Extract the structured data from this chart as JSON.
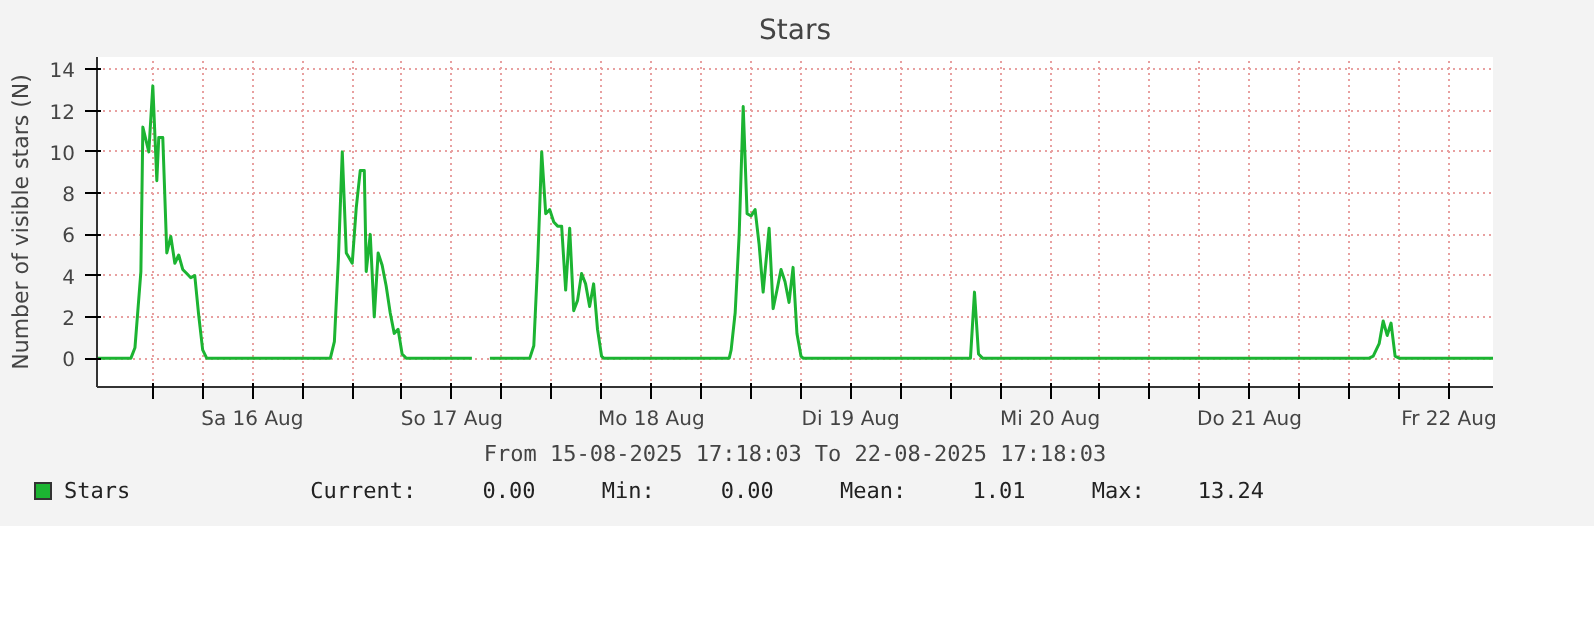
{
  "chart_data": {
    "type": "line",
    "title": "Stars",
    "ylabel": "Number of visible stars (N)",
    "annotations": [
      "From 15-08-2025 17:18:03 To 22-08-2025 17:18:03",
      "Current:     0.00     Min:     0.00     Mean:     1.01     Max:    13.24"
    ],
    "x": [
      "2025-08-15T17:18",
      "2025-08-15T21:23",
      "2025-08-15T21:52",
      "2025-08-15T22:35",
      "2025-08-15T22:49",
      "2025-08-15T23:32",
      "2025-08-16T00:01",
      "2025-08-16T00:30",
      "2025-08-16T00:44",
      "2025-08-16T01:13",
      "2025-08-16T01:42",
      "2025-08-16T02:11",
      "2025-08-16T02:40",
      "2025-08-16T03:08",
      "2025-08-16T03:37",
      "2025-08-16T04:06",
      "2025-08-16T04:35",
      "2025-08-16T05:04",
      "2025-08-16T05:32",
      "2025-08-16T06:01",
      "2025-08-16T06:30",
      "2025-08-16T21:23",
      "2025-08-16T21:52",
      "2025-08-16T22:21",
      "2025-08-16T22:49",
      "2025-08-16T23:18",
      "2025-08-17T00:01",
      "2025-08-17T00:30",
      "2025-08-17T00:59",
      "2025-08-17T01:28",
      "2025-08-17T01:42",
      "2025-08-17T02:11",
      "2025-08-17T02:40",
      "2025-08-17T03:08",
      "2025-08-17T03:37",
      "2025-08-17T04:06",
      "2025-08-17T04:35",
      "2025-08-17T05:04",
      "2025-08-17T05:32",
      "2025-08-17T06:01",
      "2025-08-17T06:30",
      "2025-08-17T14:25",
      "2025-08-17T15:30",
      "2025-08-17T16:35",
      "2025-08-17T21:23",
      "2025-08-17T21:52",
      "2025-08-17T22:21",
      "2025-08-17T22:49",
      "2025-08-17T23:18",
      "2025-08-17T23:47",
      "2025-08-18T00:16",
      "2025-08-18T00:44",
      "2025-08-18T01:13",
      "2025-08-18T01:42",
      "2025-08-18T02:11",
      "2025-08-18T02:40",
      "2025-08-18T03:08",
      "2025-08-18T03:37",
      "2025-08-18T04:06",
      "2025-08-18T04:35",
      "2025-08-18T05:04",
      "2025-08-18T05:32",
      "2025-08-18T06:01",
      "2025-08-18T06:16",
      "2025-08-18T21:23",
      "2025-08-18T21:37",
      "2025-08-18T22:06",
      "2025-08-18T22:35",
      "2025-08-18T23:04",
      "2025-08-18T23:32",
      "2025-08-19T00:01",
      "2025-08-19T00:30",
      "2025-08-19T00:59",
      "2025-08-19T01:28",
      "2025-08-19T02:11",
      "2025-08-19T02:40",
      "2025-08-19T03:08",
      "2025-08-19T03:37",
      "2025-08-19T04:06",
      "2025-08-19T04:35",
      "2025-08-19T05:04",
      "2025-08-19T05:32",
      "2025-08-19T06:01",
      "2025-08-19T06:16",
      "2025-08-20T02:25",
      "2025-08-20T02:54",
      "2025-08-20T03:23",
      "2025-08-20T03:52",
      "2025-08-22T02:24",
      "2025-08-22T02:53",
      "2025-08-22T03:36",
      "2025-08-22T04:05",
      "2025-08-22T04:34",
      "2025-08-22T05:02",
      "2025-08-22T05:31",
      "2025-08-22T06:00",
      "2025-08-22T17:18"
    ],
    "series": [
      {
        "name": "Stars",
        "color": "#1cb432",
        "values": [
          0,
          0,
          0.5,
          4.2,
          11.2,
          10,
          13.2,
          8.6,
          10.7,
          10.7,
          5.1,
          5.9,
          4.6,
          5,
          4.3,
          4.1,
          3.9,
          4,
          2.1,
          0.4,
          0,
          0,
          0.8,
          4.8,
          10,
          5.1,
          4.6,
          7.3,
          9.1,
          9.1,
          4.2,
          6,
          2,
          5.1,
          4.5,
          3.5,
          2.2,
          1.2,
          1.4,
          0.2,
          0,
          0,
          null,
          0,
          0,
          0.6,
          4.8,
          10,
          7,
          7.2,
          6.6,
          6.4,
          6.4,
          3.3,
          6.3,
          2.3,
          2.8,
          4.1,
          3.6,
          2.5,
          3.6,
          1.4,
          0.1,
          0,
          0,
          0.4,
          2.2,
          6,
          12.2,
          7,
          6.9,
          7.2,
          5.5,
          3.2,
          6.3,
          2.4,
          3.3,
          4.3,
          3.7,
          2.7,
          4.4,
          1.2,
          0.1,
          0,
          0,
          3.2,
          0.2,
          0,
          0,
          0.1,
          0.7,
          1.8,
          1.1,
          1.7,
          0.1,
          0,
          0
        ]
      }
    ],
    "xlim": [
      "2025-08-15T17:18",
      "2025-08-22T17:18"
    ],
    "xticks": [
      {
        "value": "2025-08-16T00:00",
        "label": null
      },
      {
        "value": "2025-08-16T06:00",
        "label": null
      },
      {
        "value": "2025-08-16T12:00",
        "label": "Sa 16 Aug"
      },
      {
        "value": "2025-08-16T18:00",
        "label": null
      },
      {
        "value": "2025-08-17T00:00",
        "label": null
      },
      {
        "value": "2025-08-17T06:00",
        "label": null
      },
      {
        "value": "2025-08-17T12:00",
        "label": "So 17 Aug"
      },
      {
        "value": "2025-08-17T18:00",
        "label": null
      },
      {
        "value": "2025-08-18T00:00",
        "label": null
      },
      {
        "value": "2025-08-18T06:00",
        "label": null
      },
      {
        "value": "2025-08-18T12:00",
        "label": "Mo 18 Aug"
      },
      {
        "value": "2025-08-18T18:00",
        "label": null
      },
      {
        "value": "2025-08-19T00:00",
        "label": null
      },
      {
        "value": "2025-08-19T06:00",
        "label": null
      },
      {
        "value": "2025-08-19T12:00",
        "label": "Di 19 Aug"
      },
      {
        "value": "2025-08-19T18:00",
        "label": null
      },
      {
        "value": "2025-08-20T00:00",
        "label": null
      },
      {
        "value": "2025-08-20T06:00",
        "label": null
      },
      {
        "value": "2025-08-20T12:00",
        "label": "Mi 20 Aug"
      },
      {
        "value": "2025-08-20T18:00",
        "label": null
      },
      {
        "value": "2025-08-21T00:00",
        "label": null
      },
      {
        "value": "2025-08-21T06:00",
        "label": null
      },
      {
        "value": "2025-08-21T12:00",
        "label": "Do 21 Aug"
      },
      {
        "value": "2025-08-21T18:00",
        "label": null
      },
      {
        "value": "2025-08-22T00:00",
        "label": null
      },
      {
        "value": "2025-08-22T06:00",
        "label": null
      },
      {
        "value": "2025-08-22T12:00",
        "label": "Fr 22 Aug"
      }
    ],
    "ylim": [
      -1.4,
      14.6
    ],
    "yticks": [
      0,
      2,
      4,
      6,
      8,
      10,
      12,
      14
    ],
    "grid": true,
    "legend": "bottom left",
    "line_style": "solid",
    "marker": "none"
  }
}
